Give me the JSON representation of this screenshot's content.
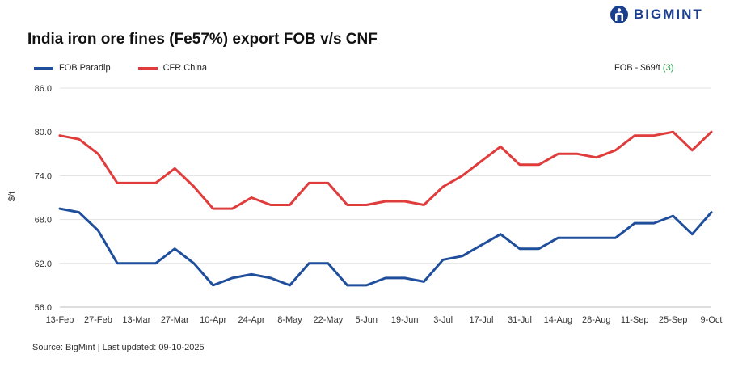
{
  "brand": {
    "name": "BIGMINT"
  },
  "annotation": {
    "prefix": "FOB - $69/t ",
    "change": "(3)",
    "change_color": "#1e9e4a"
  },
  "footer": {
    "source": "Source: BigMint | Last updated: 09-10-2025"
  },
  "chart_data": {
    "type": "line",
    "title": "India iron ore fines (Fe57%) export FOB v/s CNF",
    "xlabel": "",
    "ylabel": "$/t",
    "ylim": [
      56,
      86
    ],
    "yticks": [
      56,
      62,
      68,
      74,
      80,
      86
    ],
    "ytick_labels": [
      "56.0",
      "62.0",
      "68.0",
      "74.0",
      "80.0",
      "86.0"
    ],
    "x": [
      "13-Feb",
      "20-Feb",
      "27-Feb",
      "6-Mar",
      "13-Mar",
      "20-Mar",
      "27-Mar",
      "3-Apr",
      "10-Apr",
      "17-Apr",
      "24-Apr",
      "1-May",
      "8-May",
      "15-May",
      "22-May",
      "29-May",
      "5-Jun",
      "12-Jun",
      "19-Jun",
      "26-Jun",
      "3-Jul",
      "10-Jul",
      "17-Jul",
      "24-Jul",
      "31-Jul",
      "7-Aug",
      "14-Aug",
      "21-Aug",
      "28-Aug",
      "4-Sep",
      "11-Sep",
      "18-Sep",
      "25-Sep",
      "2-Oct",
      "9-Oct"
    ],
    "xtick_labels": [
      "13-Feb",
      "27-Feb",
      "13-Mar",
      "27-Mar",
      "10-Apr",
      "24-Apr",
      "8-May",
      "22-May",
      "5-Jun",
      "19-Jun",
      "3-Jul",
      "17-Jul",
      "31-Jul",
      "14-Aug",
      "28-Aug",
      "11-Sep",
      "25-Sep",
      "9-Oct"
    ],
    "grid": true,
    "legend_position": "top-left",
    "series": [
      {
        "name": "FOB Paradip",
        "color": "#1f4e9c",
        "values": [
          69.5,
          69,
          66.5,
          62,
          62,
          62,
          64,
          62,
          59,
          60,
          60.5,
          60,
          59,
          62,
          62,
          59,
          59,
          60,
          60,
          59.5,
          62.5,
          63,
          64.5,
          66,
          64,
          64,
          65.5,
          65.5,
          65.5,
          65.5,
          67.5,
          67.5,
          68.5,
          66,
          69
        ]
      },
      {
        "name": "CFR China",
        "color": "#e03c3c",
        "values": [
          79.5,
          79,
          77,
          73,
          73,
          73,
          75,
          72.5,
          69.5,
          69.5,
          71,
          70,
          70,
          73,
          73,
          70,
          70,
          70.5,
          70.5,
          70,
          72.5,
          74,
          76,
          78,
          75.5,
          75.5,
          77,
          77,
          76.5,
          77.5,
          79.5,
          79.5,
          80,
          77.5,
          80
        ]
      }
    ]
  }
}
